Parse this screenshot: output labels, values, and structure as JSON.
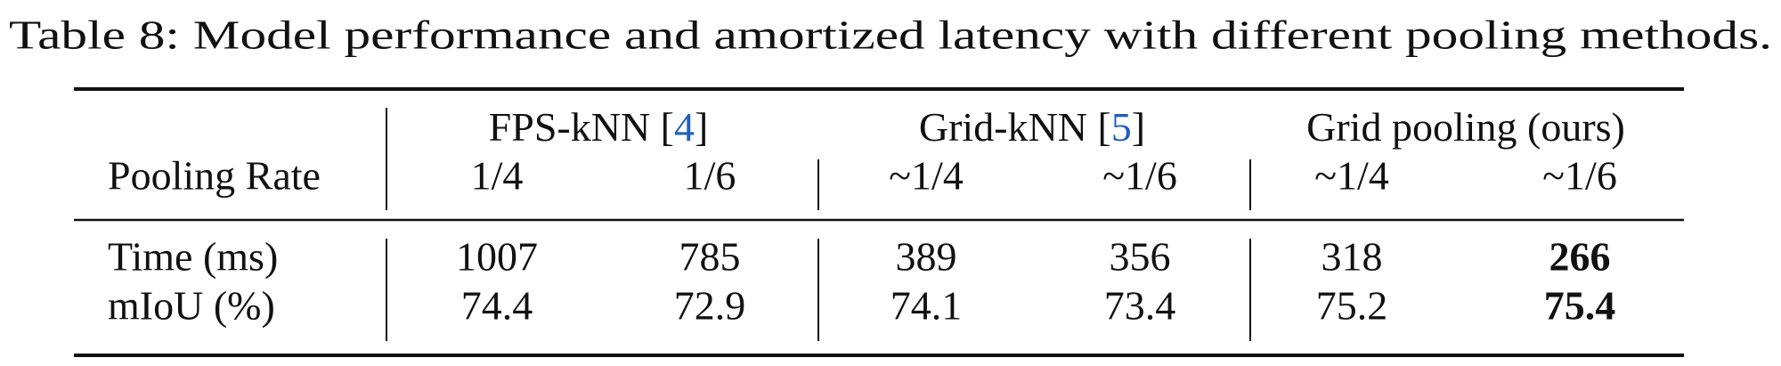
{
  "caption": "Table 8: Model performance and amortized latency with different pooling methods.",
  "table": {
    "groups": [
      {
        "label_parts": [
          "FPS-kNN [",
          "4",
          "]"
        ]
      },
      {
        "label_parts": [
          "Grid-kNN [",
          "5",
          "]"
        ]
      },
      {
        "label_parts": [
          "Grid pooling (ours)"
        ]
      }
    ],
    "citation_part": 1,
    "citation_color": "#1f5fbf",
    "header": {
      "label": "Pooling Rate",
      "cells": [
        "1/4",
        "1/6",
        "~1/4",
        "~1/6",
        "~1/4",
        "~1/6"
      ]
    },
    "rows": [
      {
        "label": "Time (ms)",
        "cells": [
          1007,
          785,
          389,
          356,
          318,
          266
        ],
        "bold": [
          5
        ]
      },
      {
        "label": "mIoU (%)",
        "cells": [
          74.4,
          72.9,
          74.1,
          73.4,
          75.2,
          75.4
        ],
        "bold": [
          5
        ]
      }
    ]
  }
}
